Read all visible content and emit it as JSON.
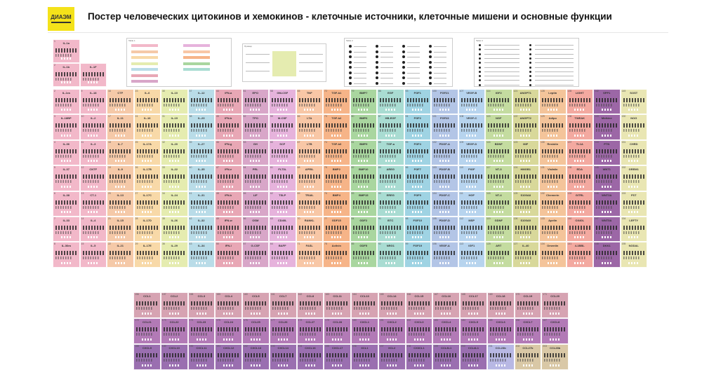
{
  "header": {
    "logo_text": "ДИАЭМ",
    "title": "Постер человеческих цитокинов и хемокинов - клеточные источники, клеточные мишени  и основные функции"
  },
  "colors": {
    "pink": "#f2b8c9",
    "salmon": "#f5c9a8",
    "lightorange": "#f8d9a8",
    "yellowgreen": "#e5ecb0",
    "lightyellow": "#f0f0c0",
    "lightblue": "#b9dce8",
    "rose": "#e8a7b5",
    "mauve": "#d8a6c8",
    "orchid": "#e6b3dc",
    "peach": "#f8c7a6",
    "orange": "#f6b488",
    "green": "#a9d69f",
    "teal": "#a9dcd2",
    "cyan": "#9fd3e3",
    "periwinkle": "#b3c5e6",
    "sky": "#b7d4ee",
    "lime": "#c4dca0",
    "olive": "#d8d89a",
    "apricot": "#f4c49a",
    "coral": "#f3a9a0",
    "purple": "#9c67a6",
    "paleyellow": "#e9e6b3",
    "chemo_top": "#d6a3b2",
    "chemo_mid": "#b27ab6",
    "chemo_bot": "#9a6fb0",
    "chemo_blue": "#b8b8e4",
    "chemo_tan": "#d9c8a6"
  },
  "poster": {
    "top_cells": [
      {
        "num": "1",
        "name": "IL-1a",
        "col": 0,
        "row": 0,
        "color": "pink"
      },
      {
        "num": "2",
        "name": "IL-1b",
        "col": 0,
        "row": 1,
        "color": "pink"
      },
      {
        "num": "",
        "name": "IL-1F",
        "col": 1,
        "row": 1,
        "color": "pink"
      }
    ],
    "columns": [
      {
        "color": "pink",
        "names": [
          "IL-1ra",
          "IL-18BP",
          "IL-36",
          "IL-37",
          "IL-38",
          "IL-33",
          "IL-36ra"
        ]
      },
      {
        "color": "pink",
        "names": [
          "IL-18",
          "IL-2",
          "IL-3",
          "CNTF",
          "CT-1",
          "IL-4",
          "IL-5"
        ]
      },
      {
        "color": "salmon",
        "names": [
          "CTF",
          "IL-11",
          "IL-7",
          "IL-9",
          "IL-13",
          "IL-15",
          "IL-21"
        ]
      },
      {
        "color": "lightorange",
        "names": [
          "IL-6",
          "IL-16",
          "IL-17A",
          "IL-17B",
          "IL-17C",
          "IL-17D",
          "IL-17E"
        ]
      },
      {
        "color": "yellowgreen",
        "names": [
          "IL-10",
          "IL-19",
          "IL-20",
          "IL-22",
          "IL-24",
          "IL-26",
          "IL-29"
        ]
      },
      {
        "color": "lightblue",
        "names": [
          "IL-12",
          "IL-23",
          "IL-27",
          "IL-35",
          "IL-31",
          "IL-32",
          "IL-34"
        ]
      },
      {
        "color": "rose",
        "names": [
          "IFN-a",
          "IFN-b",
          "IFN-g",
          "IFN-e",
          "IFN-k",
          "IFN-w",
          "IFN-l"
        ]
      },
      {
        "color": "mauve",
        "names": [
          "EPO",
          "TPO",
          "GH",
          "PRL",
          "LIF",
          "OSM",
          "G-CSF"
        ]
      },
      {
        "color": "orchid",
        "names": [
          "GM-CSF",
          "M-CSF",
          "SCF",
          "FLT3L",
          "TSLP",
          "CD40L",
          "BAFF"
        ]
      },
      {
        "color": "peach",
        "names": [
          "TNF",
          "LTA",
          "LTB",
          "APRIL",
          "TRAIL",
          "RANKL",
          "FASL"
        ]
      },
      {
        "color": "orange",
        "names": [
          "TGF-b1",
          "TGF-b2",
          "TGF-b3",
          "BMP2",
          "BMP4",
          "GDF15",
          "Activin"
        ]
      },
      {
        "color": "green",
        "names": [
          "BMP7",
          "BMP6",
          "BMP9",
          "BMP10",
          "BMP15",
          "GDF2",
          "GDF5"
        ]
      },
      {
        "color": "teal",
        "names": [
          "EGF",
          "HB-EGF",
          "TGF-a",
          "AREG",
          "EREG",
          "BTC",
          "NRG1"
        ]
      },
      {
        "color": "cyan",
        "names": [
          "FGF1",
          "FGF2",
          "FGF4",
          "FGF7",
          "FGF9",
          "FGF10",
          "FGF19"
        ]
      },
      {
        "color": "periwinkle",
        "names": [
          "FGF21",
          "FGF23",
          "PDGF-A",
          "PDGF-B",
          "PDGF-C",
          "PDGF-D",
          "VEGF-A"
        ]
      },
      {
        "color": "sky",
        "names": [
          "VEGF-B",
          "VEGF-C",
          "VEGF-D",
          "PlGF",
          "HGF",
          "MSP",
          "IGF1"
        ]
      },
      {
        "color": "lime",
        "names": [
          "IGF2",
          "NGF",
          "BDNF",
          "NT-3",
          "NT-4",
          "GDNF",
          "ART"
        ]
      },
      {
        "color": "olive",
        "names": [
          "ANGPT1",
          "ANGPT2",
          "MIF",
          "HMGB1",
          "S100A8",
          "S100A9",
          "IL-40"
        ]
      },
      {
        "color": "apricot",
        "names": [
          "Leptin",
          "Adipo",
          "Resistin",
          "Visfatin",
          "Chemerin",
          "Apelin",
          "Omentin"
        ]
      },
      {
        "color": "coral",
        "names": [
          "LIGHT",
          "TWEAK",
          "TL1A",
          "EDA",
          "GITRL",
          "OX40L",
          "4-1BBL"
        ]
      },
      {
        "color": "purple",
        "names": [
          "SPP1",
          "Midkine",
          "PTN",
          "WNT1",
          "WNT3A",
          "WNT5A",
          "DKK1"
        ]
      },
      {
        "color": "paleyellow",
        "names": [
          "SOST",
          "NOG",
          "CHRD",
          "GREM1",
          "FST",
          "LEFTY",
          "NODAL"
        ]
      }
    ]
  },
  "legends": [
    {
      "id": "legend-cell-type",
      "head": "Table 1"
    },
    {
      "id": "legend-example",
      "head": "Пример"
    },
    {
      "id": "legend-icons",
      "head": "Table 2"
    },
    {
      "id": "legend-functions",
      "head": "Table 3"
    }
  ],
  "chemokines": {
    "rows": [
      {
        "color": "chemo_top",
        "names": [
          "CCL1",
          "CCL2",
          "CCL3",
          "CCL4",
          "CCL5",
          "CCL7",
          "CCL8",
          "CCL11",
          "CCL13",
          "CCL14",
          "CCL15",
          "CCL16",
          "CCL17",
          "CCL18",
          "CCL19",
          "CCL20"
        ]
      },
      {
        "color": "chemo_mid",
        "names": [
          "CCL21",
          "CCL22",
          "CCL23",
          "CCL24",
          "CCL25",
          "CCL26",
          "CCL27",
          "CCL28",
          "CXCL1",
          "CXCL2",
          "CXCL3",
          "CXCL4",
          "CXCL5",
          "CXCL6",
          "CXCL7",
          "CXCL8"
        ]
      },
      {
        "color": "chemo_bot",
        "names": [
          "CXCL9",
          "CXCL10",
          "CXCL11",
          "CXCL12",
          "CXCL13",
          "CXCL14",
          "CXCL16",
          "CXCL17",
          "XCL1",
          "XCL2",
          "CX3CL1",
          "CCL3L1",
          "CCL4L1",
          "CCL23b",
          "CCL27b",
          "CCL28b"
        ]
      }
    ]
  }
}
